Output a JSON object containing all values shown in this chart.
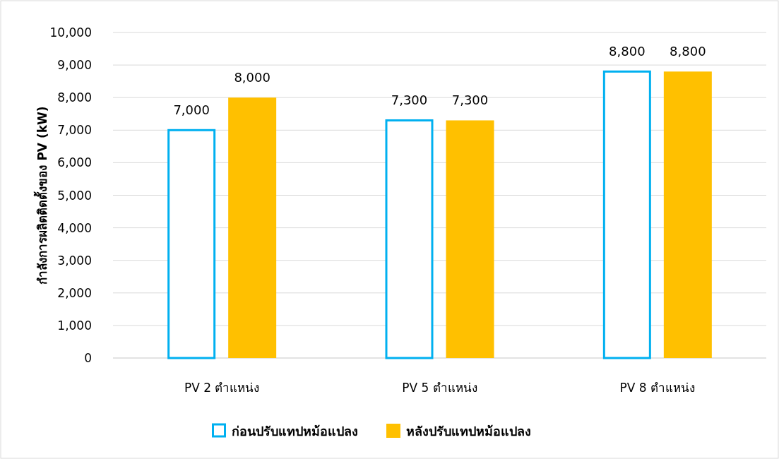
{
  "chart_data": {
    "type": "bar",
    "ylabel": "กำลังการผลิตติดตั้งของ PV (kW)",
    "categories": [
      "PV 2 ตำแหน่ง",
      "PV 5 ตำแหน่ง",
      "PV 8 ตำแหน่ง"
    ],
    "series": [
      {
        "name": "ก่อนปรับแทปหม้อแปลง",
        "color": "#00b0f0",
        "values": [
          7000,
          7300,
          8800
        ],
        "value_labels": [
          "7,000",
          "7,300",
          "8,800"
        ]
      },
      {
        "name": "หลังปรับแทปหม้อแปลง",
        "color": "#ffc000",
        "values": [
          8000,
          7300,
          8800
        ],
        "value_labels": [
          "8,000",
          "7,300",
          "8,800"
        ]
      }
    ],
    "ylim": [
      0,
      10000
    ],
    "yticks": [
      {
        "value": 0,
        "label": "0"
      },
      {
        "value": 1000,
        "label": "1,000"
      },
      {
        "value": 2000,
        "label": "2,000"
      },
      {
        "value": 3000,
        "label": "3,000"
      },
      {
        "value": 4000,
        "label": "4,000"
      },
      {
        "value": 5000,
        "label": "5,000"
      },
      {
        "value": 6000,
        "label": "6,000"
      },
      {
        "value": 7000,
        "label": "7,000"
      },
      {
        "value": 8000,
        "label": "8,000"
      },
      {
        "value": 9000,
        "label": "9,000"
      },
      {
        "value": 10000,
        "label": "10,000"
      }
    ],
    "grid": "y",
    "legend": "bottom"
  }
}
